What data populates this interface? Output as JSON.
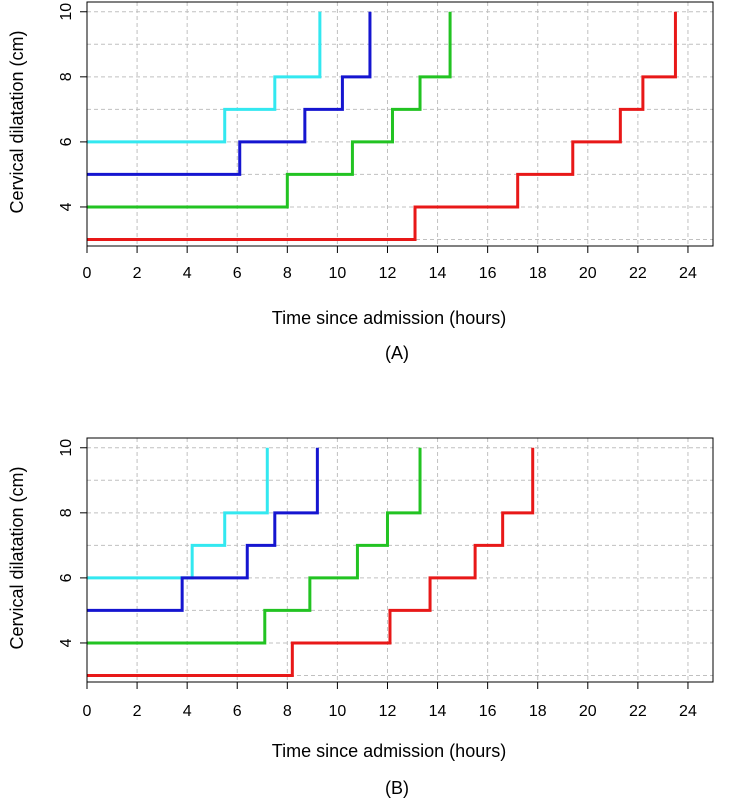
{
  "chart_data": [
    {
      "type": "line",
      "step": true,
      "panel_label": "(A)",
      "xlabel": "Time since admission (hours)",
      "ylabel": "Cervical dilatation (cm)",
      "xlim": [
        0,
        25
      ],
      "ylim": [
        2.8,
        10.3
      ],
      "xticks": [
        0,
        2,
        4,
        6,
        8,
        10,
        12,
        14,
        16,
        18,
        20,
        22,
        24
      ],
      "yticks": [
        4,
        6,
        8,
        10
      ],
      "grid": true,
      "series": [
        {
          "color": "#33e8f0",
          "steps": [
            [
              0,
              6
            ],
            [
              5.5,
              7
            ],
            [
              7.5,
              8
            ],
            [
              9.3,
              10
            ]
          ]
        },
        {
          "color": "#1515d0",
          "steps": [
            [
              0,
              5
            ],
            [
              6.1,
              6
            ],
            [
              8.7,
              7
            ],
            [
              10.2,
              8
            ],
            [
              11.3,
              10
            ]
          ]
        },
        {
          "color": "#22c322",
          "steps": [
            [
              0,
              4
            ],
            [
              8.0,
              5
            ],
            [
              10.6,
              6
            ],
            [
              12.2,
              7
            ],
            [
              13.3,
              8
            ],
            [
              14.5,
              10
            ]
          ]
        },
        {
          "color": "#e81818",
          "steps": [
            [
              0,
              3
            ],
            [
              13.1,
              4
            ],
            [
              17.2,
              5
            ],
            [
              19.4,
              6
            ],
            [
              21.3,
              7
            ],
            [
              22.2,
              8
            ],
            [
              23.5,
              10
            ]
          ]
        }
      ]
    },
    {
      "type": "line",
      "step": true,
      "panel_label": "(B)",
      "xlabel": "Time since admission (hours)",
      "ylabel": "Cervical dilatation (cm)",
      "xlim": [
        0,
        25
      ],
      "ylim": [
        2.8,
        10.3
      ],
      "xticks": [
        0,
        2,
        4,
        6,
        8,
        10,
        12,
        14,
        16,
        18,
        20,
        22,
        24
      ],
      "yticks": [
        4,
        6,
        8,
        10
      ],
      "grid": true,
      "series": [
        {
          "color": "#33e8f0",
          "steps": [
            [
              0,
              6
            ],
            [
              4.2,
              7
            ],
            [
              5.5,
              8
            ],
            [
              7.2,
              10
            ]
          ]
        },
        {
          "color": "#1515d0",
          "steps": [
            [
              0,
              5
            ],
            [
              3.8,
              6
            ],
            [
              6.4,
              7
            ],
            [
              7.5,
              8
            ],
            [
              9.2,
              10
            ]
          ]
        },
        {
          "color": "#22c322",
          "steps": [
            [
              0,
              4
            ],
            [
              7.1,
              5
            ],
            [
              8.9,
              6
            ],
            [
              10.8,
              7
            ],
            [
              12.0,
              8
            ],
            [
              13.3,
              10
            ]
          ]
        },
        {
          "color": "#e81818",
          "steps": [
            [
              0,
              3
            ],
            [
              8.2,
              4
            ],
            [
              12.1,
              5
            ],
            [
              13.7,
              6
            ],
            [
              15.5,
              7
            ],
            [
              16.6,
              8
            ],
            [
              17.8,
              10
            ]
          ]
        }
      ]
    }
  ]
}
